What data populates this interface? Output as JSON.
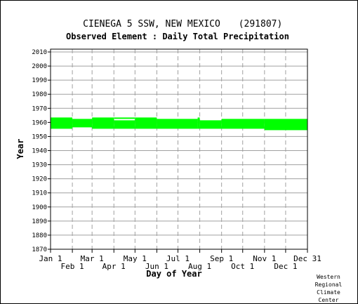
{
  "chart_data": {
    "type": "heatmap",
    "title": "CIENEGA 5 SSW, NEW MEXICO",
    "station_id": "(291807)",
    "subtitle": "Observed Element : Daily Total Precipitation",
    "xlabel": "Day of Year",
    "ylabel": "Year",
    "xlim": [
      1,
      366
    ],
    "ylim": [
      1870,
      2012
    ],
    "yticks": [
      1870,
      1880,
      1890,
      1900,
      1910,
      1920,
      1930,
      1940,
      1950,
      1960,
      1970,
      1980,
      1990,
      2000,
      2010
    ],
    "xticks_upper": [
      {
        "label": "Jan 1",
        "day": 1
      },
      {
        "label": "Mar 1",
        "day": 60
      },
      {
        "label": "May 1",
        "day": 121
      },
      {
        "label": "Jul 1",
        "day": 182
      },
      {
        "label": "Sep 1",
        "day": 244
      },
      {
        "label": "Nov 1",
        "day": 305
      },
      {
        "label": "Dec 31",
        "day": 366
      }
    ],
    "xticks_lower": [
      {
        "label": "Feb 1",
        "day": 32
      },
      {
        "label": "Apr 1",
        "day": 91
      },
      {
        "label": "Jun 1",
        "day": 152
      },
      {
        "label": "Aug 1",
        "day": 213
      },
      {
        "label": "Oct 1",
        "day": 274
      },
      {
        "label": "Dec 1",
        "day": 335
      }
    ],
    "grid": true,
    "color": "#00ff00",
    "coverage": [
      {
        "day_start": 1,
        "day_end": 32,
        "year_start": 1955.5,
        "year_end": 1963.5
      },
      {
        "day_start": 32,
        "day_end": 60,
        "year_start": 1956.5,
        "year_end": 1962.5
      },
      {
        "day_start": 60,
        "day_end": 91,
        "year_start": 1955.5,
        "year_end": 1963.5
      },
      {
        "day_start": 91,
        "day_end": 121,
        "year_start": 1955.5,
        "year_end": 1961.5
      },
      {
        "day_start": 91,
        "day_end": 121,
        "year_start": 1962.5,
        "year_end": 1963.5
      },
      {
        "day_start": 121,
        "day_end": 152,
        "year_start": 1955.5,
        "year_end": 1963.5
      },
      {
        "day_start": 152,
        "day_end": 210,
        "year_start": 1955.5,
        "year_end": 1962.5
      },
      {
        "day_start": 210,
        "day_end": 213,
        "year_start": 1955.5,
        "year_end": 1963.5
      },
      {
        "day_start": 213,
        "day_end": 244,
        "year_start": 1955.5,
        "year_end": 1961.5
      },
      {
        "day_start": 244,
        "day_end": 305,
        "year_start": 1955.5,
        "year_end": 1962.5
      },
      {
        "day_start": 305,
        "day_end": 366,
        "year_start": 1954.5,
        "year_end": 1962.5
      }
    ]
  },
  "credit": [
    "Western",
    "Regional",
    "Climate",
    "Center"
  ]
}
